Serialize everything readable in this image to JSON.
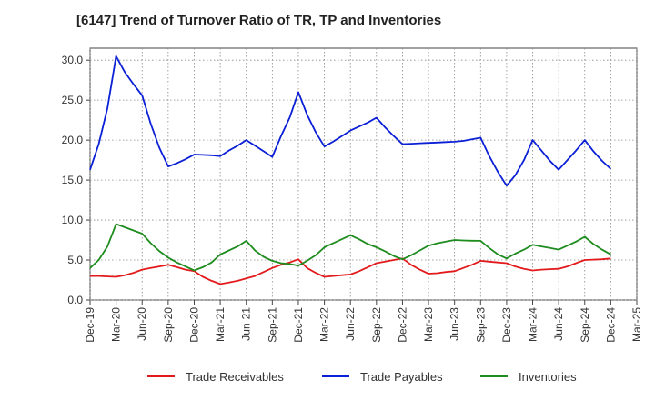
{
  "chart_data": {
    "type": "line",
    "title": "[6147]  Trend of Turnover Ratio of TR, TP and Inventories",
    "xlabel": "",
    "ylabel": "",
    "ylim": [
      0,
      31.5
    ],
    "grid": true,
    "legend": "bottom",
    "yticks": [
      "0.0",
      "5.0",
      "10.0",
      "15.0",
      "20.0",
      "25.0",
      "30.0"
    ],
    "ytick_values": [
      0,
      5,
      10,
      15,
      20,
      25,
      30
    ],
    "xticks": [
      "Dec-19",
      "Mar-20",
      "Jun-20",
      "Sep-20",
      "Dec-20",
      "Mar-21",
      "Jun-21",
      "Sep-21",
      "Dec-21",
      "Mar-22",
      "Jun-22",
      "Sep-22",
      "Dec-22",
      "Mar-23",
      "Jun-23",
      "Sep-23",
      "Dec-23",
      "Mar-24",
      "Jun-24",
      "Sep-24",
      "Dec-24",
      "Mar-25"
    ],
    "x": [
      "Dec-19",
      "Jan-20",
      "Feb-20",
      "Mar-20",
      "Apr-20",
      "May-20",
      "Jun-20",
      "Jul-20",
      "Aug-20",
      "Sep-20",
      "Oct-20",
      "Nov-20",
      "Dec-20",
      "Jan-21",
      "Feb-21",
      "Mar-21",
      "Apr-21",
      "May-21",
      "Jun-21",
      "Jul-21",
      "Aug-21",
      "Sep-21",
      "Oct-21",
      "Nov-21",
      "Dec-21",
      "Jan-22",
      "Feb-22",
      "Mar-22",
      "Apr-22",
      "May-22",
      "Jun-22",
      "Jul-22",
      "Aug-22",
      "Sep-22",
      "Oct-22",
      "Nov-22",
      "Dec-22",
      "Jan-23",
      "Feb-23",
      "Mar-23",
      "Apr-23",
      "May-23",
      "Jun-23",
      "Jul-23",
      "Aug-23",
      "Sep-23",
      "Oct-23",
      "Nov-23",
      "Dec-23",
      "Jan-24",
      "Feb-24",
      "Mar-24",
      "Apr-24",
      "May-24",
      "Jun-24",
      "Jul-24",
      "Aug-24",
      "Sep-24",
      "Oct-24",
      "Nov-24",
      "Dec-24"
    ],
    "series": [
      {
        "name": "Trade Receivables",
        "color": "#e31a1c",
        "values": [
          3.0,
          3.0,
          2.95,
          2.9,
          3.1,
          3.4,
          3.8,
          4.0,
          4.2,
          4.4,
          4.1,
          3.8,
          3.6,
          2.9,
          2.4,
          2.0,
          2.2,
          2.4,
          2.7,
          3.0,
          3.5,
          4.0,
          4.4,
          4.7,
          5.1,
          4.0,
          3.4,
          2.9,
          3.0,
          3.1,
          3.2,
          3.6,
          4.1,
          4.6,
          4.8,
          5.0,
          5.2,
          4.4,
          3.8,
          3.3,
          3.35,
          3.5,
          3.6,
          4.0,
          4.4,
          4.9,
          4.8,
          4.7,
          4.6,
          4.2,
          3.9,
          3.7,
          3.8,
          3.85,
          3.9,
          4.2,
          4.6,
          5.0,
          5.05,
          5.1,
          5.2
        ]
      },
      {
        "name": "Trade Payables",
        "color": "#0a1fd6",
        "values": [
          16.3,
          19.5,
          24.0,
          30.5,
          28.5,
          27.0,
          25.6,
          22.0,
          19.0,
          16.7,
          17.1,
          17.6,
          18.2,
          18.15,
          18.1,
          18.0,
          18.7,
          19.3,
          20.0,
          19.3,
          18.6,
          17.9,
          20.5,
          22.8,
          26.0,
          23.2,
          21.0,
          19.2,
          19.8,
          20.5,
          21.2,
          21.7,
          22.2,
          22.8,
          21.6,
          20.5,
          19.5,
          19.55,
          19.6,
          19.65,
          19.7,
          19.75,
          19.8,
          19.9,
          20.1,
          20.3,
          18.0,
          16.0,
          14.3,
          15.6,
          17.5,
          20.0,
          18.7,
          17.4,
          16.3,
          17.5,
          18.7,
          20.0,
          18.6,
          17.4,
          16.4
        ]
      },
      {
        "name": "Inventories",
        "color": "#1e8c1e",
        "values": [
          4.0,
          5.0,
          6.7,
          9.5,
          9.1,
          8.7,
          8.3,
          7.1,
          6.1,
          5.3,
          4.7,
          4.2,
          3.7,
          4.1,
          4.7,
          5.7,
          6.2,
          6.7,
          7.4,
          6.2,
          5.4,
          4.9,
          4.6,
          4.5,
          4.3,
          4.9,
          5.6,
          6.6,
          7.1,
          7.6,
          8.1,
          7.6,
          7.0,
          6.6,
          6.1,
          5.5,
          5.1,
          5.6,
          6.2,
          6.8,
          7.1,
          7.3,
          7.5,
          7.45,
          7.42,
          7.4,
          6.5,
          5.7,
          5.2,
          5.8,
          6.3,
          6.9,
          6.7,
          6.5,
          6.3,
          6.8,
          7.3,
          7.9,
          7.0,
          6.3,
          5.7
        ]
      }
    ]
  }
}
